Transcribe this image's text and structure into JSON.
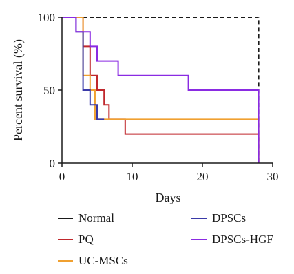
{
  "chart_data": {
    "type": "line",
    "step": true,
    "xlabel": "Days",
    "ylabel": "Percent survival (%)",
    "xlim": [
      0,
      30
    ],
    "ylim": [
      0,
      100
    ],
    "x_ticks": [
      0,
      10,
      20,
      30
    ],
    "y_ticks": [
      0,
      50,
      100
    ],
    "grid": false,
    "legend": {
      "placement": "bottom",
      "columns": 2
    },
    "series": [
      {
        "name": "Normal",
        "color": "#1a1a1a",
        "dashed": true,
        "points": [
          [
            0,
            100
          ],
          [
            28,
            100
          ],
          [
            28,
            0
          ]
        ]
      },
      {
        "name": "PQ",
        "color": "#c0282d",
        "dashed": false,
        "points": [
          [
            0,
            100
          ],
          [
            3,
            100
          ],
          [
            3,
            80
          ],
          [
            4,
            80
          ],
          [
            4,
            60
          ],
          [
            5,
            60
          ],
          [
            5,
            50
          ],
          [
            6,
            50
          ],
          [
            6,
            40
          ],
          [
            6.7,
            40
          ],
          [
            6.7,
            30
          ],
          [
            9,
            30
          ],
          [
            9,
            20
          ],
          [
            28,
            20
          ],
          [
            28,
            0
          ]
        ]
      },
      {
        "name": "UC-MSCs",
        "color": "#f0a030",
        "dashed": false,
        "points": [
          [
            0,
            100
          ],
          [
            3,
            100
          ],
          [
            3,
            60
          ],
          [
            4,
            60
          ],
          [
            4,
            50
          ],
          [
            4.7,
            50
          ],
          [
            4.7,
            30
          ],
          [
            28,
            30
          ],
          [
            28,
            0
          ]
        ]
      },
      {
        "name": "DPSCs",
        "color": "#3a3aa8",
        "dashed": false,
        "points": [
          [
            0,
            100
          ],
          [
            2,
            100
          ],
          [
            2,
            90
          ],
          [
            3,
            90
          ],
          [
            3,
            50
          ],
          [
            4,
            50
          ],
          [
            4,
            40
          ],
          [
            5,
            40
          ],
          [
            5,
            30
          ],
          [
            6,
            30
          ]
        ]
      },
      {
        "name": "DPSCs-HGF",
        "color": "#8a2be2",
        "dashed": false,
        "points": [
          [
            0,
            100
          ],
          [
            2,
            100
          ],
          [
            2,
            90
          ],
          [
            4,
            90
          ],
          [
            4,
            80
          ],
          [
            5,
            80
          ],
          [
            5,
            70
          ],
          [
            8,
            70
          ],
          [
            8,
            60
          ],
          [
            18,
            60
          ],
          [
            18,
            50
          ],
          [
            28,
            50
          ],
          [
            28,
            0
          ]
        ]
      }
    ]
  }
}
